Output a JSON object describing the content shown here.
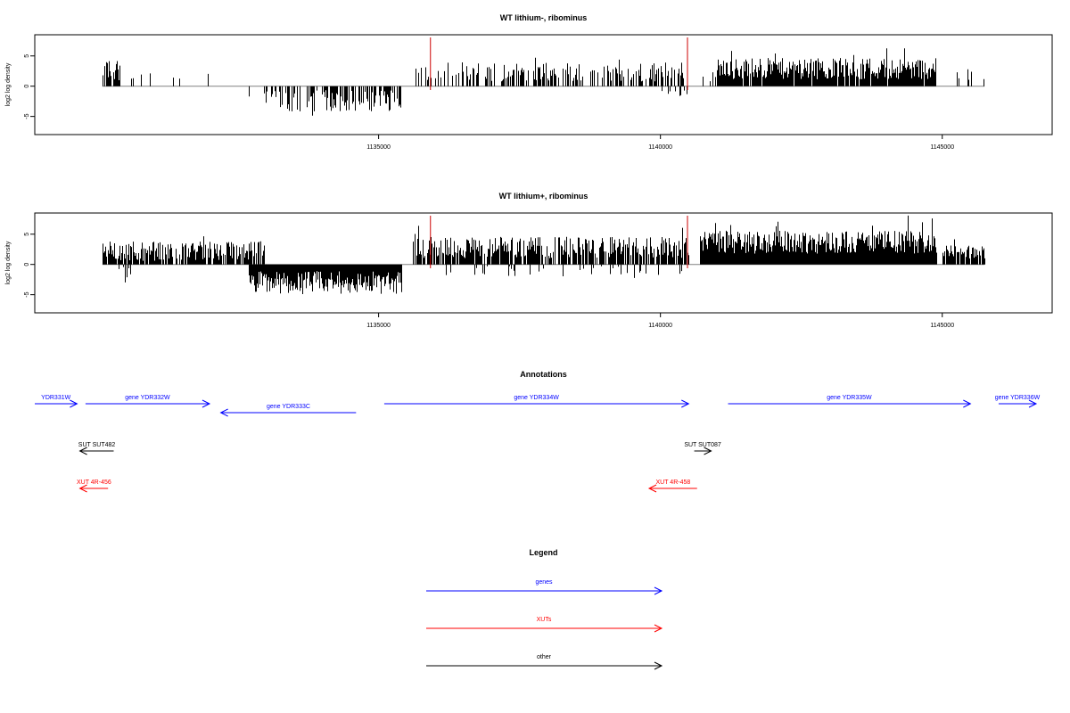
{
  "chart_data": [
    {
      "type": "bar",
      "title": "WT lithium-, ribominus",
      "xlabel": "",
      "ylabel": "log2 log density",
      "xlim": [
        1128900,
        1146950
      ],
      "ylim": [
        -8,
        8.5
      ],
      "xticks": [
        1135000,
        1140000,
        1145000
      ],
      "xtick_labels": [
        "1135000",
        "1140000",
        "1145000"
      ],
      "yticks": [
        -5,
        0,
        5
      ],
      "ytick_labels": [
        "-5",
        "0",
        "5"
      ],
      "grid": false,
      "data_range": [
        1130100,
        1145750
      ],
      "red_markers": [
        1135920,
        1140480
      ],
      "segments": [
        {
          "from": 1130100,
          "to": 1130400,
          "polarity": "plus",
          "density": 0.85,
          "level": 2.6,
          "spread": 1.3
        },
        {
          "from": 1130500,
          "to": 1132400,
          "polarity": "plus",
          "density": 0.06,
          "level": 1.8,
          "spread": 0.7
        },
        {
          "from": 1132600,
          "to": 1133000,
          "polarity": "minus",
          "density": 0.1,
          "level": -1.0,
          "spread": 0.6
        },
        {
          "from": 1133000,
          "to": 1133600,
          "polarity": "minus",
          "density": 0.55,
          "level": -2.4,
          "spread": 1.2
        },
        {
          "from": 1133700,
          "to": 1135400,
          "polarity": "minus",
          "density": 0.6,
          "level": -2.4,
          "spread": 1.1
        },
        {
          "from": 1135600,
          "to": 1136200,
          "polarity": "plus",
          "density": 0.3,
          "level": 2.0,
          "spread": 0.9
        },
        {
          "from": 1136200,
          "to": 1140400,
          "polarity": "plus",
          "density": 0.5,
          "level": 2.4,
          "spread": 1.0
        },
        {
          "from": 1140000,
          "to": 1140500,
          "polarity": "minus",
          "density": 0.12,
          "level": -0.9,
          "spread": 0.5
        },
        {
          "from": 1140700,
          "to": 1141000,
          "polarity": "plus",
          "density": 0.15,
          "level": 1.5,
          "spread": 0.6
        },
        {
          "from": 1141000,
          "to": 1144900,
          "polarity": "plus",
          "density": 0.95,
          "level": 2.9,
          "spread": 1.1
        },
        {
          "from": 1145050,
          "to": 1145750,
          "polarity": "plus",
          "density": 0.12,
          "level": 2.0,
          "spread": 0.7
        }
      ]
    },
    {
      "type": "bar",
      "title": "WT lithium+, ribominus",
      "xlabel": "",
      "ylabel": "log2 log density",
      "xlim": [
        1128900,
        1146950
      ],
      "ylim": [
        -8,
        8.5
      ],
      "xticks": [
        1135000,
        1140000,
        1145000
      ],
      "xtick_labels": [
        "1135000",
        "1140000",
        "1145000"
      ],
      "yticks": [
        -5,
        0,
        5
      ],
      "ytick_labels": [
        "-5",
        "0",
        "5"
      ],
      "grid": false,
      "data_range": [
        1130100,
        1145750
      ],
      "red_markers": [
        1135920,
        1140480
      ],
      "segments": [
        {
          "from": 1130100,
          "to": 1133000,
          "polarity": "plus",
          "density": 0.8,
          "level": 2.2,
          "spread": 1.0
        },
        {
          "from": 1130200,
          "to": 1130600,
          "polarity": "minus",
          "density": 0.3,
          "level": -1.8,
          "spread": 0.9
        },
        {
          "from": 1132600,
          "to": 1133000,
          "polarity": "minus",
          "density": 0.3,
          "level": -1.2,
          "spread": 0.6
        },
        {
          "from": 1132700,
          "to": 1135400,
          "polarity": "minus",
          "density": 1.0,
          "level": -3.0,
          "spread": 1.2
        },
        {
          "from": 1135600,
          "to": 1140500,
          "polarity": "plus",
          "density": 0.8,
          "level": 2.8,
          "spread": 1.1
        },
        {
          "from": 1136200,
          "to": 1140400,
          "polarity": "minus",
          "density": 0.1,
          "level": -1.0,
          "spread": 0.6
        },
        {
          "from": 1140700,
          "to": 1144900,
          "polarity": "plus",
          "density": 1.0,
          "level": 3.7,
          "spread": 1.2
        },
        {
          "from": 1145000,
          "to": 1145750,
          "polarity": "plus",
          "density": 0.8,
          "level": 2.0,
          "spread": 0.7
        }
      ]
    }
  ],
  "annotations": {
    "title": "Annotations",
    "xlim": [
      1128900,
      1146950
    ],
    "features": [
      {
        "label": "YDR331W",
        "kind": "gene",
        "strand": "+",
        "start": 1128900,
        "end": 1129650,
        "row": 1
      },
      {
        "label": "gene YDR332W",
        "kind": "gene",
        "strand": "+",
        "start": 1129800,
        "end": 1132000,
        "row": 1
      },
      {
        "label": "gene YDR333C",
        "kind": "gene",
        "strand": "-",
        "start": 1132200,
        "end": 1134600,
        "row": 2
      },
      {
        "label": "gene YDR334W",
        "kind": "gene",
        "strand": "+",
        "start": 1135100,
        "end": 1140500,
        "row": 1
      },
      {
        "label": "gene YDR335W",
        "kind": "gene",
        "strand": "+",
        "start": 1141200,
        "end": 1145500,
        "row": 1
      },
      {
        "label": "gene YDR336W",
        "kind": "gene",
        "strand": "+",
        "start": 1146000,
        "end": 1146950,
        "row": 1
      },
      {
        "label": "SUT SUT482",
        "kind": "other",
        "strand": "-",
        "start": 1129700,
        "end": 1130300,
        "row": 3
      },
      {
        "label": "SUT SUT087",
        "kind": "other",
        "strand": "+",
        "start": 1140600,
        "end": 1140900,
        "row": 3
      },
      {
        "label": "XUT 4R-456",
        "kind": "xut",
        "strand": "-",
        "start": 1129700,
        "end": 1130200,
        "row": 4
      },
      {
        "label": "XUT 4R-458",
        "kind": "xut",
        "strand": "-",
        "start": 1139800,
        "end": 1140650,
        "row": 4
      }
    ]
  },
  "legend": {
    "title": "Legend",
    "items": [
      {
        "label": "genes",
        "kind": "gene"
      },
      {
        "label": "XUTs",
        "kind": "xut"
      },
      {
        "label": "other",
        "kind": "other"
      }
    ]
  },
  "colors": {
    "gene": "#0000ff",
    "xut": "#ff0000",
    "other": "#000000",
    "bars": "#000000",
    "frame": "#000000",
    "baseline": "#808080",
    "marker": "#cc0000"
  }
}
